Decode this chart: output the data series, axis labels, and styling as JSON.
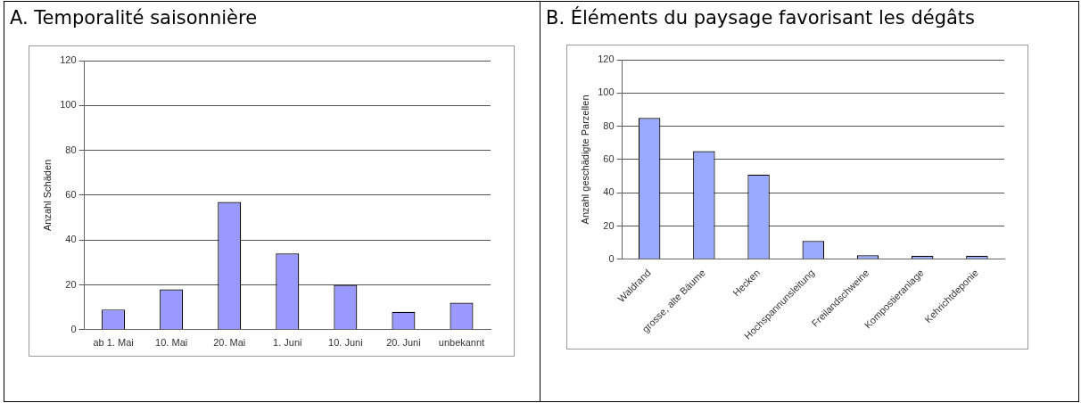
{
  "chart_data": [
    {
      "type": "bar",
      "title": "A. Temporalité saisonnière",
      "ylabel": "Anzahl Schäden",
      "categories": [
        "ab 1. Mai",
        "10. Mai",
        "20. Mai",
        "1. Juni",
        "10. Juni",
        "20. Juni",
        "unbekannt"
      ],
      "values": [
        9,
        18,
        57,
        34,
        20,
        8,
        12
      ],
      "color": "#9999ff",
      "ylim": [
        0,
        120
      ],
      "yticks": [
        0,
        20,
        40,
        60,
        80,
        100,
        120
      ],
      "grid": "y"
    },
    {
      "type": "bar",
      "title": "B. Éléments du paysage favorisant les dégâts",
      "ylabel": "Anzahl geschädigte Parzellen",
      "categories": [
        "Waldrand",
        "grosse, alte Bäume",
        "Hecken",
        "Hochspannunsleitung",
        "Freilandschweine",
        "Kompostieranlage",
        "Kehrichtdeponie"
      ],
      "values": [
        85,
        65,
        51,
        11,
        2.5,
        2,
        2
      ],
      "color": "#99aaff",
      "ylim": [
        0,
        120
      ],
      "yticks": [
        0,
        20,
        40,
        60,
        80,
        100,
        120
      ],
      "grid": "y"
    }
  ]
}
